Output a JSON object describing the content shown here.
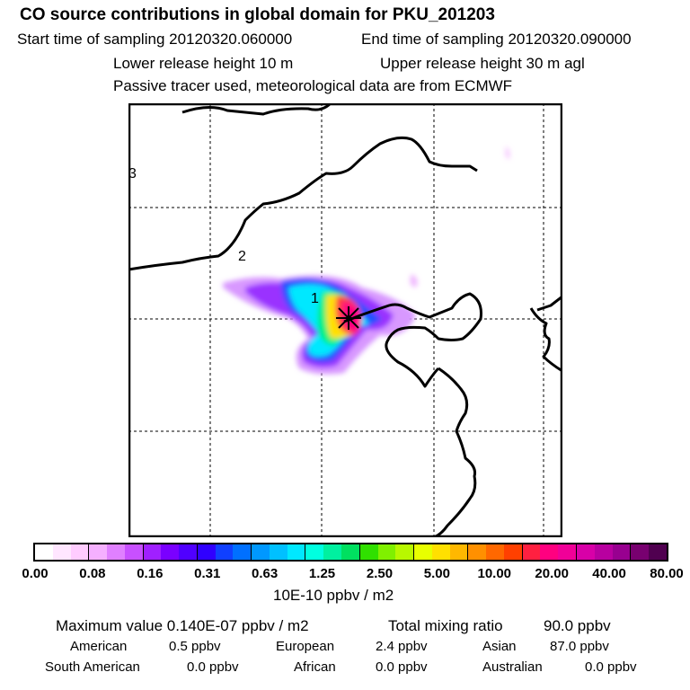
{
  "header": {
    "title": "CO  source contributions in global domain for PKU_201203",
    "start_sampling": "Start time of sampling 20120320.060000",
    "end_sampling": "End time of sampling 20120320.090000",
    "lower_release": "Lower release height   10 m",
    "upper_release": "Upper release height   30 m    agl",
    "tracer_note": "Passive tracer used, meteorological data are from ECMWF"
  },
  "map": {
    "contour_labels": [
      "3",
      "2",
      "1"
    ],
    "receptor_marker": "star"
  },
  "colorbar": {
    "tick_labels": [
      "0.00",
      "0.08",
      "0.16",
      "0.31",
      "0.63",
      "1.25",
      "2.50",
      "5.00",
      "10.00",
      "20.00",
      "40.00",
      "80.00"
    ],
    "unit": "10E-10 ppbv / m2",
    "colors": [
      "#ffffff",
      "#ffe6ff",
      "#ffccff",
      "#f5b0ff",
      "#e080ff",
      "#c850ff",
      "#a020ff",
      "#7a00ff",
      "#5000ff",
      "#3000ff",
      "#1040ff",
      "#0070ff",
      "#0098ff",
      "#00c0ff",
      "#00e8ff",
      "#00ffe0",
      "#00f0a0",
      "#00e060",
      "#30e000",
      "#80f000",
      "#b8f800",
      "#e8ff00",
      "#ffe000",
      "#ffb800",
      "#ff9000",
      "#ff6800",
      "#ff4000",
      "#ff2040",
      "#ff0080",
      "#f00098",
      "#d800a8",
      "#b800a0",
      "#980090",
      "#780070",
      "#500050"
    ]
  },
  "summary": {
    "max_value": "Maximum value  0.140E-07 ppbv / m2",
    "total_mixing": "Total mixing ratio",
    "total_mixing_value": "90.0 ppbv",
    "regions": [
      {
        "name": "American",
        "value": "0.5 ppbv"
      },
      {
        "name": "European",
        "value": "2.4 ppbv"
      },
      {
        "name": "Asian",
        "value": "87.0 ppbv"
      },
      {
        "name": "South American",
        "value": "0.0 ppbv"
      },
      {
        "name": "African",
        "value": "0.0 ppbv"
      },
      {
        "name": "Australian",
        "value": "0.0 ppbv"
      }
    ]
  }
}
